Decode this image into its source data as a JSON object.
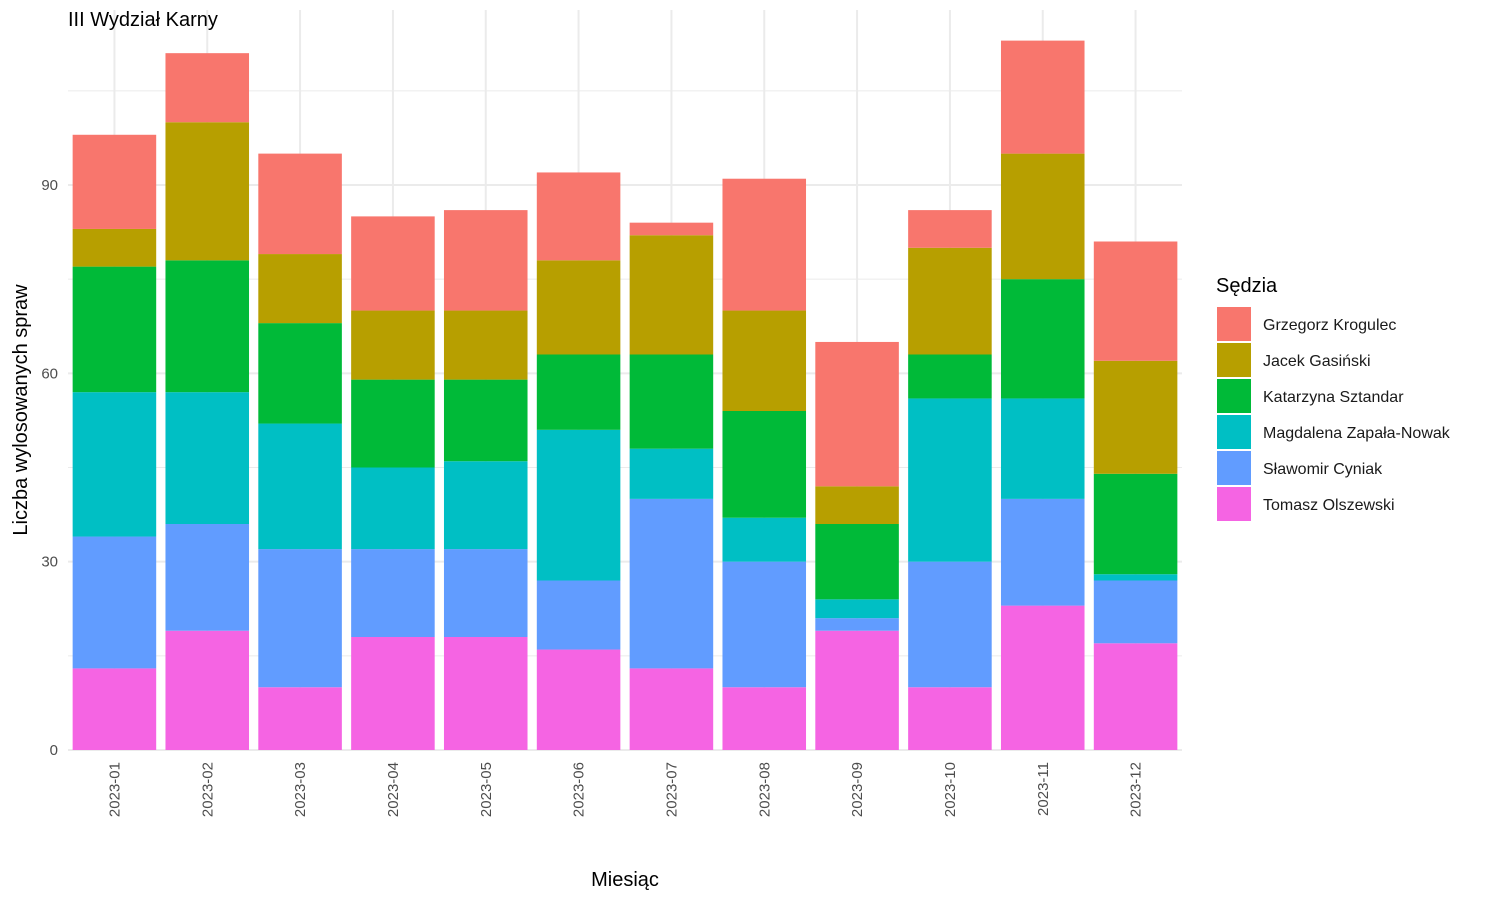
{
  "chart_data": {
    "type": "bar",
    "stacked": true,
    "title": "III Wydział Karny",
    "xlabel": "Miesiąc",
    "ylabel": "Liczba wylosowanych spraw",
    "ylim": [
      0,
      115
    ],
    "yticks": [
      0,
      30,
      60,
      90
    ],
    "grid": true,
    "legend_title": "Sędzia",
    "legend_position": "right",
    "categories": [
      "2023-01",
      "2023-02",
      "2023-03",
      "2023-04",
      "2023-05",
      "2023-06",
      "2023-07",
      "2023-08",
      "2023-09",
      "2023-10",
      "2023-11",
      "2023-12"
    ],
    "series": [
      {
        "name": "Tomasz Olszewski",
        "color": "#F564E3",
        "values": [
          13,
          19,
          10,
          18,
          18,
          16,
          13,
          10,
          19,
          10,
          23,
          17
        ]
      },
      {
        "name": "Sławomir Cyniak",
        "color": "#619CFF",
        "values": [
          21,
          17,
          22,
          14,
          14,
          11,
          27,
          20,
          2,
          20,
          17,
          10
        ]
      },
      {
        "name": "Magdalena Zapała-Nowak",
        "color": "#00BFC4",
        "values": [
          23,
          21,
          20,
          13,
          14,
          24,
          8,
          7,
          3,
          26,
          16,
          1
        ]
      },
      {
        "name": "Katarzyna Sztandar",
        "color": "#00BA38",
        "values": [
          20,
          21,
          16,
          14,
          13,
          12,
          15,
          17,
          12,
          7,
          19,
          16
        ]
      },
      {
        "name": "Jacek Gasiński",
        "color": "#B79F00",
        "values": [
          6,
          22,
          11,
          11,
          11,
          15,
          19,
          16,
          6,
          17,
          20,
          18
        ]
      },
      {
        "name": "Grzegorz Krogulec",
        "color": "#F8766D",
        "values": [
          15,
          11,
          16,
          15,
          16,
          14,
          2,
          21,
          23,
          6,
          18,
          19
        ]
      }
    ],
    "legend_order": [
      "Grzegorz Krogulec",
      "Jacek Gasiński",
      "Katarzyna Sztandar",
      "Magdalena Zapała-Nowak",
      "Sławomir Cyniak",
      "Tomasz Olszewski"
    ]
  }
}
